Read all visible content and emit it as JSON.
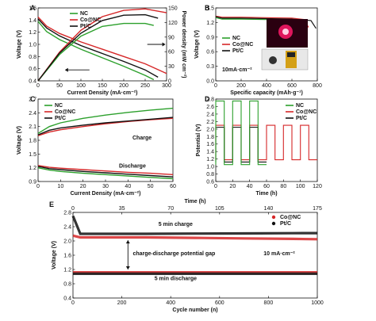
{
  "colors": {
    "NC": "#2ca02c",
    "Co@NC": "#d62728",
    "Pt/C": "#111111",
    "inset_bg": "#2a0010",
    "inset_glow": "#ff1a6a"
  },
  "panel_labels": {
    "A": "A",
    "B": "B",
    "C": "C",
    "D": "D",
    "E": "E"
  },
  "chart_data": [
    {
      "panel": "A",
      "type": "line",
      "xlabel": "Current Density (mA·cm⁻²)",
      "ylabel": "Voltage (V)",
      "y2label": "Power density (mW cm⁻²)",
      "xlim": [
        0,
        300
      ],
      "ylim": [
        0.4,
        1.6
      ],
      "y2lim": [
        0,
        150
      ],
      "xticks": [
        0,
        50,
        100,
        150,
        200,
        250,
        300
      ],
      "yticks": [
        0.4,
        0.6,
        0.8,
        1.0,
        1.2,
        1.4,
        1.6
      ],
      "y2ticks": [
        0,
        30,
        60,
        90,
        120,
        150
      ],
      "legend": [
        "NC",
        "Co@NC",
        "Pt/C"
      ],
      "legend_position": "top-left",
      "polarization": [
        {
          "name": "NC",
          "x": [
            0,
            20,
            50,
            100,
            150,
            200,
            250,
            270
          ],
          "y": [
            1.38,
            1.21,
            1.08,
            0.92,
            0.78,
            0.64,
            0.49,
            0.42
          ]
        },
        {
          "name": "Co@NC",
          "x": [
            0,
            20,
            50,
            100,
            150,
            200,
            250,
            300
          ],
          "y": [
            1.45,
            1.3,
            1.18,
            1.04,
            0.92,
            0.8,
            0.68,
            0.52
          ]
        },
        {
          "name": "Pt/C",
          "x": [
            0,
            20,
            50,
            100,
            150,
            200,
            250,
            280
          ],
          "y": [
            1.42,
            1.27,
            1.14,
            0.98,
            0.85,
            0.72,
            0.58,
            0.46
          ]
        }
      ],
      "power": [
        {
          "name": "NC",
          "x": [
            0,
            50,
            100,
            150,
            200,
            250,
            270
          ],
          "y": [
            0,
            54,
            92,
            112,
            118,
            118,
            114
          ]
        },
        {
          "name": "Co@NC",
          "x": [
            0,
            50,
            100,
            150,
            200,
            250,
            300
          ],
          "y": [
            0,
            59,
            104,
            132,
            145,
            148,
            140
          ]
        },
        {
          "name": "Pt/C",
          "x": [
            0,
            50,
            100,
            150,
            200,
            250,
            280
          ],
          "y": [
            0,
            57,
            98,
            124,
            135,
            136,
            129
          ]
        }
      ]
    },
    {
      "panel": "B",
      "type": "line",
      "xlabel": "Specific capacity (mAh·g⁻¹)",
      "ylabel": "Voltage (V)",
      "xlim": [
        0,
        800
      ],
      "ylim": [
        0.0,
        1.5
      ],
      "xticks": [
        0,
        200,
        400,
        600,
        800
      ],
      "yticks": [
        0.0,
        0.3,
        0.6,
        0.9,
        1.2,
        1.5
      ],
      "legend": [
        "NC",
        "Co@NC",
        "Pt/C"
      ],
      "legend_position": "center-left",
      "annotation": "10mA·cm⁻²",
      "series": [
        {
          "name": "NC",
          "x": [
            0,
            50,
            200,
            400,
            600,
            650,
            680
          ],
          "y": [
            1.3,
            1.27,
            1.27,
            1.26,
            1.25,
            1.22,
            1.05
          ]
        },
        {
          "name": "Co@NC",
          "x": [
            0,
            50,
            200,
            400,
            600,
            700,
            730
          ],
          "y": [
            1.33,
            1.31,
            1.31,
            1.3,
            1.29,
            1.26,
            1.1
          ]
        },
        {
          "name": "Pt/C",
          "x": [
            0,
            50,
            200,
            400,
            600,
            750,
            790
          ],
          "y": [
            1.32,
            1.29,
            1.29,
            1.28,
            1.27,
            1.24,
            1.08
          ]
        }
      ]
    },
    {
      "panel": "C",
      "type": "line",
      "xlabel": "Current Density (mA·cm⁻²)",
      "ylabel": "Voltage (V)",
      "xlim": [
        0,
        60
      ],
      "ylim": [
        0.9,
        2.7
      ],
      "xticks": [
        0,
        10,
        20,
        30,
        40,
        50,
        60
      ],
      "yticks": [
        0.9,
        1.2,
        1.5,
        1.8,
        2.1,
        2.4,
        2.7
      ],
      "legend": [
        "NC",
        "Co@NC",
        "Pt/C"
      ],
      "legend_position": "top-left",
      "annotations": [
        "Charge",
        "Discharge"
      ],
      "charge": [
        {
          "name": "NC",
          "x": [
            0,
            5,
            10,
            20,
            30,
            40,
            50,
            60
          ],
          "y": [
            1.95,
            2.1,
            2.18,
            2.28,
            2.35,
            2.41,
            2.46,
            2.5
          ]
        },
        {
          "name": "Co@NC",
          "x": [
            0,
            5,
            10,
            20,
            30,
            40,
            50,
            60
          ],
          "y": [
            1.9,
            1.98,
            2.03,
            2.1,
            2.16,
            2.21,
            2.25,
            2.28
          ]
        },
        {
          "name": "Pt/C",
          "x": [
            0,
            5,
            10,
            20,
            30,
            40,
            50,
            60
          ],
          "y": [
            1.92,
            2.02,
            2.07,
            2.13,
            2.18,
            2.22,
            2.26,
            2.3
          ]
        }
      ],
      "discharge": [
        {
          "name": "NC",
          "x": [
            0,
            5,
            10,
            20,
            30,
            40,
            50,
            60
          ],
          "y": [
            1.2,
            1.15,
            1.12,
            1.08,
            1.05,
            1.02,
            0.99,
            0.96
          ]
        },
        {
          "name": "Co@NC",
          "x": [
            0,
            5,
            10,
            20,
            30,
            40,
            50,
            60
          ],
          "y": [
            1.25,
            1.21,
            1.19,
            1.16,
            1.13,
            1.1,
            1.08,
            1.05
          ]
        },
        {
          "name": "Pt/C",
          "x": [
            0,
            5,
            10,
            20,
            30,
            40,
            50,
            60
          ],
          "y": [
            1.23,
            1.18,
            1.16,
            1.12,
            1.09,
            1.06,
            1.03,
            1.0
          ]
        }
      ]
    },
    {
      "panel": "D",
      "type": "line",
      "xlabel": "Time (h)",
      "ylabel": "Potential (V)",
      "xlim": [
        0,
        120
      ],
      "ylim": [
        0.6,
        2.8
      ],
      "xticks": [
        0,
        20,
        40,
        60,
        80,
        100,
        120
      ],
      "yticks": [
        0.6,
        0.8,
        1.0,
        1.2,
        1.4,
        1.6,
        1.8,
        2.0,
        2.2,
        2.4,
        2.6,
        2.8
      ],
      "legend": [
        "NC",
        "Co@NC",
        "Pt/C"
      ],
      "legend_position": "top-right",
      "charge_potential": {
        "NC": 2.75,
        "Co@NC": 2.1,
        "Pt/C": 2.05
      },
      "discharge_potential": {
        "NC": 1.05,
        "Co@NC": 1.18,
        "Pt/C": 1.12
      },
      "cycle_period_h": 20,
      "NC_end_h": 60
    },
    {
      "panel": "E",
      "type": "scatter",
      "xlabel": "Cycle number (n)",
      "x2label": "Time (h)",
      "ylabel": "Voltage (V)",
      "xlim": [
        0,
        1000
      ],
      "x2lim": [
        0,
        175
      ],
      "ylim": [
        0.4,
        2.8
      ],
      "xticks": [
        0,
        200,
        400,
        600,
        800,
        1000
      ],
      "x2ticks": [
        0,
        35,
        70,
        105,
        140,
        175
      ],
      "yticks": [
        0.4,
        0.8,
        1.2,
        1.6,
        2.0,
        2.4,
        2.8
      ],
      "legend": [
        "Co@NC",
        "Pt/C"
      ],
      "legend_position": "top-right",
      "annotations": [
        "5 min charge",
        "charge-discharge potential gap",
        "10 mA·cm⁻²",
        "5 min discharge"
      ],
      "series": [
        {
          "name": "Co@NC",
          "charge_start": 2.15,
          "charge_mid": 2.1,
          "charge_end": 2.05,
          "discharge": 1.12
        },
        {
          "name": "Pt/C",
          "charge_start": 2.7,
          "charge_mid": 2.2,
          "charge_end": 2.22,
          "discharge": 1.08
        }
      ]
    }
  ]
}
